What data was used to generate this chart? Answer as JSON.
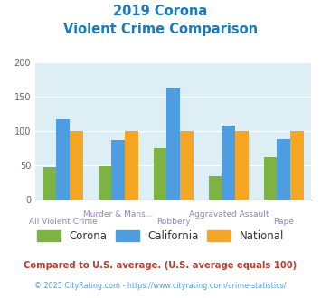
{
  "title_line1": "2019 Corona",
  "title_line2": "Violent Crime Comparison",
  "title_color": "#1a7abf",
  "categories": [
    "All Violent Crime",
    "Murder & Mans...",
    "Robbery",
    "Aggravated Assault",
    "Rape"
  ],
  "cat_upper": [
    "Murder & Mans...",
    "Aggravated Assault"
  ],
  "cat_lower": [
    "All Violent Crime",
    "Robbery",
    "Rape"
  ],
  "corona_values": [
    47,
    49,
    75,
    35,
    62
  ],
  "california_values": [
    118,
    87,
    162,
    108,
    88
  ],
  "national_values": [
    100,
    100,
    100,
    100,
    100
  ],
  "corona_color": "#7cb342",
  "california_color": "#4d9de0",
  "national_color": "#f5a623",
  "ylim": [
    0,
    200
  ],
  "yticks": [
    0,
    50,
    100,
    150,
    200
  ],
  "plot_bg": "#ddeef5",
  "legend_labels": [
    "Corona",
    "California",
    "National"
  ],
  "footnote1": "Compared to U.S. average. (U.S. average equals 100)",
  "footnote2": "© 2025 CityRating.com - https://www.cityrating.com/crime-statistics/",
  "footnote1_color": "#c0392b",
  "footnote2_color": "#5b9bd5",
  "upper_label_color": "#9b7ec8",
  "lower_label_color": "#9b7ec8"
}
